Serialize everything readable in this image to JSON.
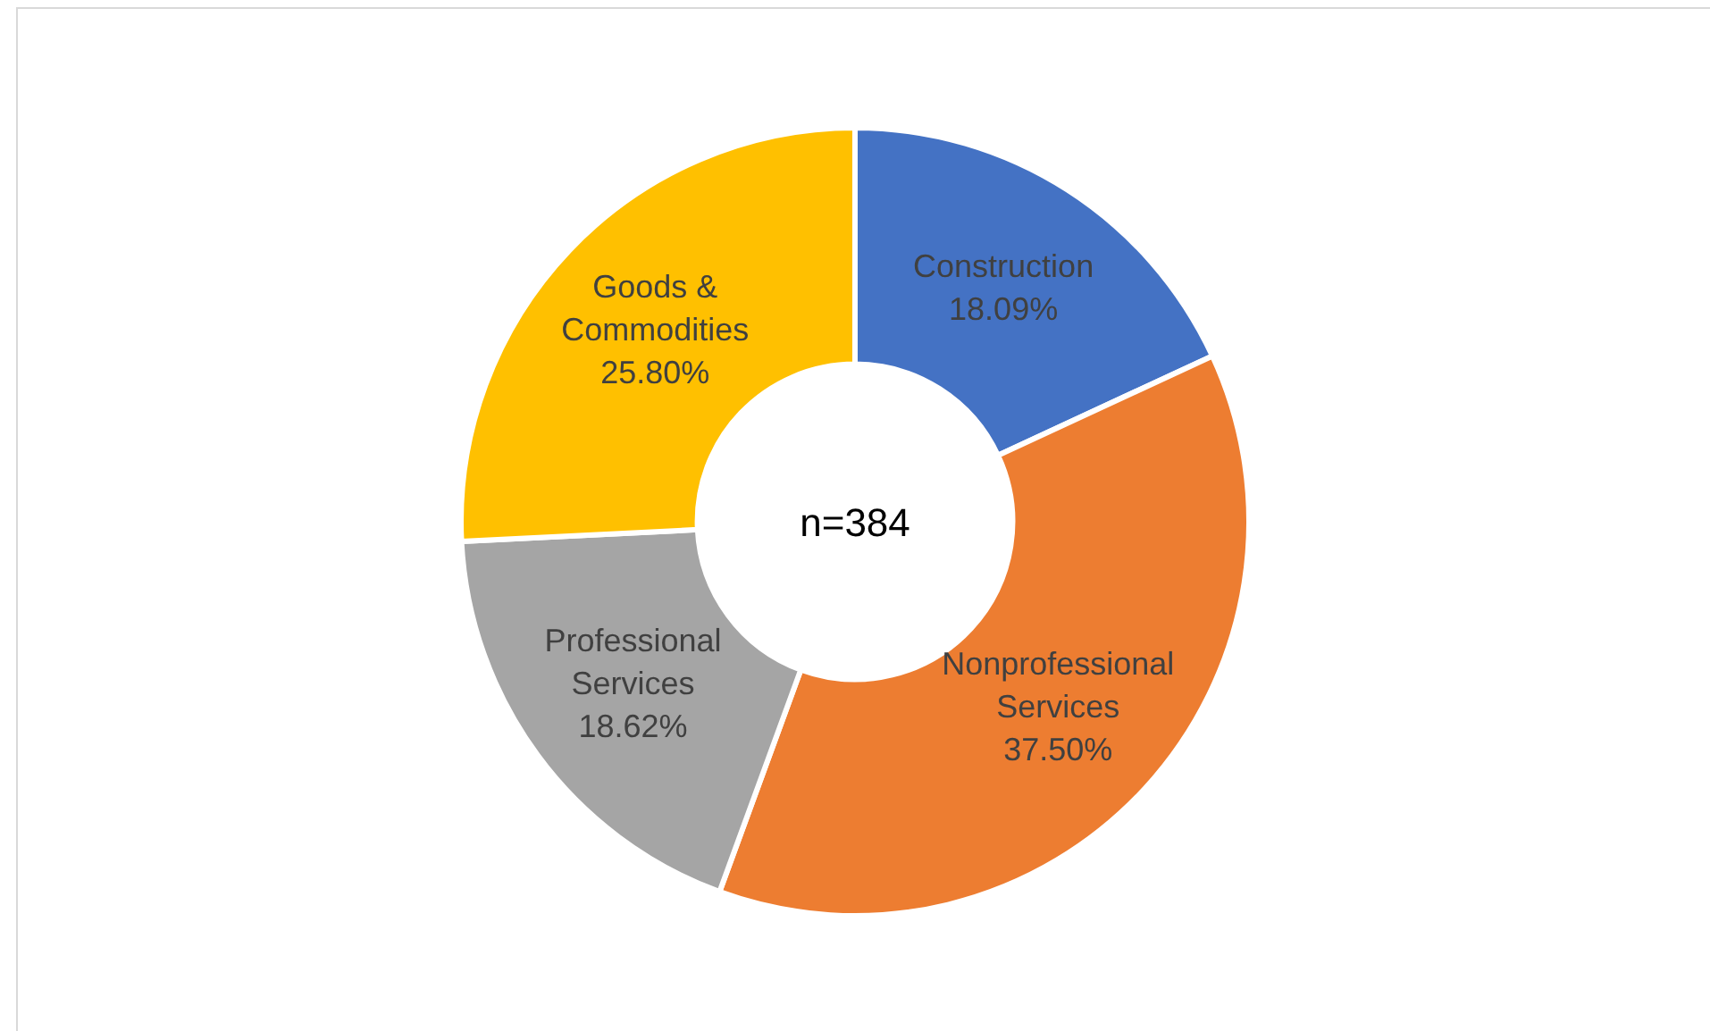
{
  "chart_data": {
    "type": "donut",
    "categories": [
      "Construction",
      "Nonprofessional Services",
      "Professional Services",
      "Goods & Commodities"
    ],
    "values": [
      18.09,
      37.5,
      18.62,
      25.8
    ],
    "value_labels": [
      "18.09%",
      "37.50%",
      "18.62%",
      "25.80%"
    ],
    "colors": [
      "#4472c4",
      "#ed7d31",
      "#a5a5a5",
      "#ffc000"
    ],
    "annotations": [
      "n=384"
    ],
    "legend": false
  }
}
